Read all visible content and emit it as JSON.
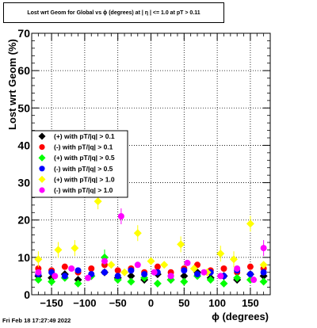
{
  "title": "Lost wrt Geom for Global vs ϕ (degrees) at |  η | <= 1.0 at pT > 0.11",
  "footer": "Fri Feb 18 17:27:49 2022",
  "chart_data": {
    "type": "scatter",
    "xlabel": "ϕ (degrees)",
    "ylabel": "Lost wrt Geom (%)",
    "xlim": [
      -180,
      180
    ],
    "ylim": [
      0,
      70
    ],
    "xticks": [
      -150,
      -100,
      -50,
      0,
      50,
      100,
      150
    ],
    "yticks": [
      0,
      10,
      20,
      30,
      40,
      50,
      60,
      70
    ],
    "xtick_labels": [
      "−150",
      "−100",
      "−50",
      "0",
      "50",
      "100",
      "150"
    ],
    "ytick_labels": [
      "0",
      "10",
      "20",
      "30",
      "40",
      "50",
      "60",
      "70"
    ],
    "grid": true,
    "legend_position": "left-middle",
    "series": [
      {
        "name": "(+) with pT/|q| > 0.1",
        "color": "#000000",
        "marker": "diamond",
        "x": [
          -170,
          -150,
          -130,
          -110,
          -90,
          -70,
          -50,
          -30,
          -10,
          10,
          30,
          50,
          70,
          90,
          110,
          130,
          150,
          170
        ],
        "y": [
          5,
          4.5,
          5.5,
          4,
          5,
          6,
          4.5,
          5,
          4,
          5.5,
          4,
          5,
          6,
          4.5,
          5,
          4,
          5.5,
          5
        ]
      },
      {
        "name": "(-) with pT/|q| > 0.1",
        "color": "#ff0000",
        "marker": "circle",
        "x": [
          -170,
          -150,
          -130,
          -110,
          -90,
          -70,
          -50,
          -30,
          -10,
          10,
          30,
          50,
          70,
          90,
          110,
          130,
          150,
          170
        ],
        "y": [
          7,
          6.5,
          7.5,
          6,
          7,
          8,
          6.5,
          7,
          6,
          7.5,
          6,
          7,
          8,
          6.5,
          7,
          6,
          7.5,
          7
        ]
      },
      {
        "name": "(+) with pT/|q| > 0.5",
        "color": "#00ff00",
        "marker": "diamond",
        "x": [
          -170,
          -150,
          -130,
          -110,
          -90,
          -70,
          -50,
          -30,
          -10,
          10,
          30,
          50,
          70,
          90,
          110,
          130,
          150,
          170
        ],
        "y": [
          4,
          3.5,
          4.5,
          3,
          5,
          10,
          4,
          3.5,
          4.5,
          3,
          4,
          3.5,
          5,
          4,
          3,
          4.5,
          4,
          3.5
        ]
      },
      {
        "name": "(-) with pT/|q| > 0.5",
        "color": "#0000ff",
        "marker": "circle",
        "x": [
          -170,
          -150,
          -130,
          -110,
          -90,
          -70,
          -50,
          -30,
          -10,
          10,
          30,
          50,
          70,
          90,
          110,
          130,
          150,
          170
        ],
        "y": [
          5.5,
          6,
          5,
          6.5,
          5.5,
          6,
          5,
          6.5,
          5.5,
          6,
          5,
          6.5,
          5.5,
          6,
          5,
          6.5,
          5.5,
          6
        ]
      },
      {
        "name": "(+) with pT/|q| > 1.0",
        "color": "#ffff00",
        "marker": "diamond",
        "x": [
          -170,
          -140,
          -115,
          -80,
          -60,
          -40,
          -20,
          0,
          20,
          45,
          65,
          85,
          105,
          125,
          150,
          170
        ],
        "y": [
          9.5,
          12,
          12.5,
          25,
          8,
          6,
          16.5,
          9,
          8,
          13.5,
          7,
          6,
          11,
          9.5,
          19,
          8
        ]
      },
      {
        "name": "(-) with pT/|q| > 1.0",
        "color": "#ff00ff",
        "marker": "circle",
        "x": [
          -170,
          -145,
          -120,
          -95,
          -70,
          -45,
          -20,
          5,
          30,
          55,
          80,
          105,
          130,
          155,
          170
        ],
        "y": [
          6,
          5,
          7,
          4.5,
          9,
          21,
          8,
          6,
          5,
          8.5,
          6,
          5,
          7,
          4,
          12.5
        ]
      }
    ]
  }
}
